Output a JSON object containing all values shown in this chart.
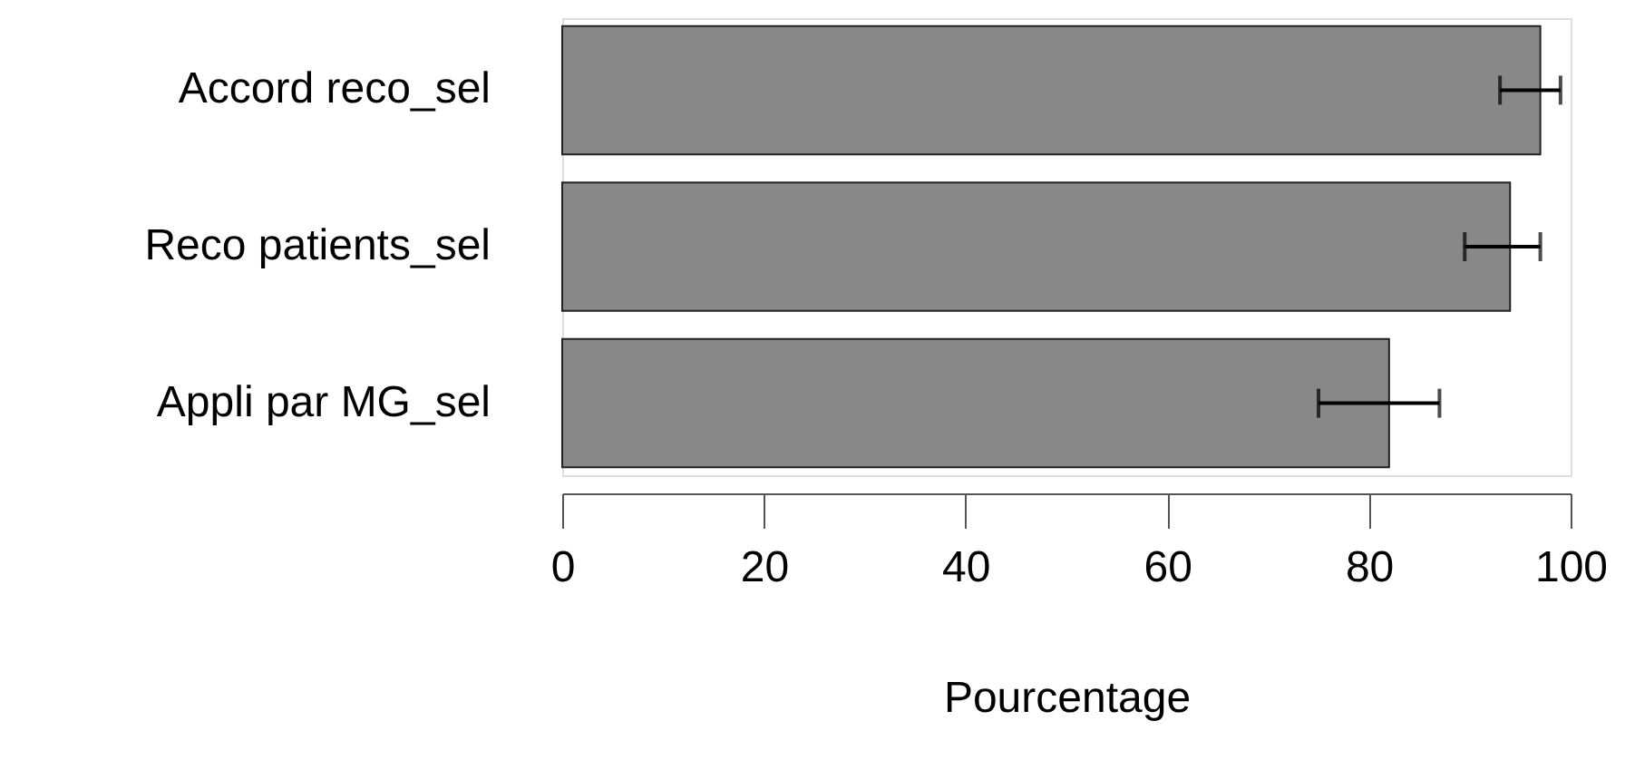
{
  "chart_data": {
    "type": "bar",
    "orientation": "horizontal",
    "xlabel": "Pourcentage",
    "categories": [
      "Accord reco_sel",
      "Reco patients_sel",
      "Appli par MG_sel"
    ],
    "values": [
      97,
      94,
      82
    ],
    "errors": [
      [
        93,
        99
      ],
      [
        89.5,
        97
      ],
      [
        75,
        87
      ]
    ],
    "color": "#888888",
    "xlim": [
      0,
      100
    ],
    "xticks": [
      0,
      20,
      40,
      60,
      80,
      100
    ],
    "grid": false
  }
}
